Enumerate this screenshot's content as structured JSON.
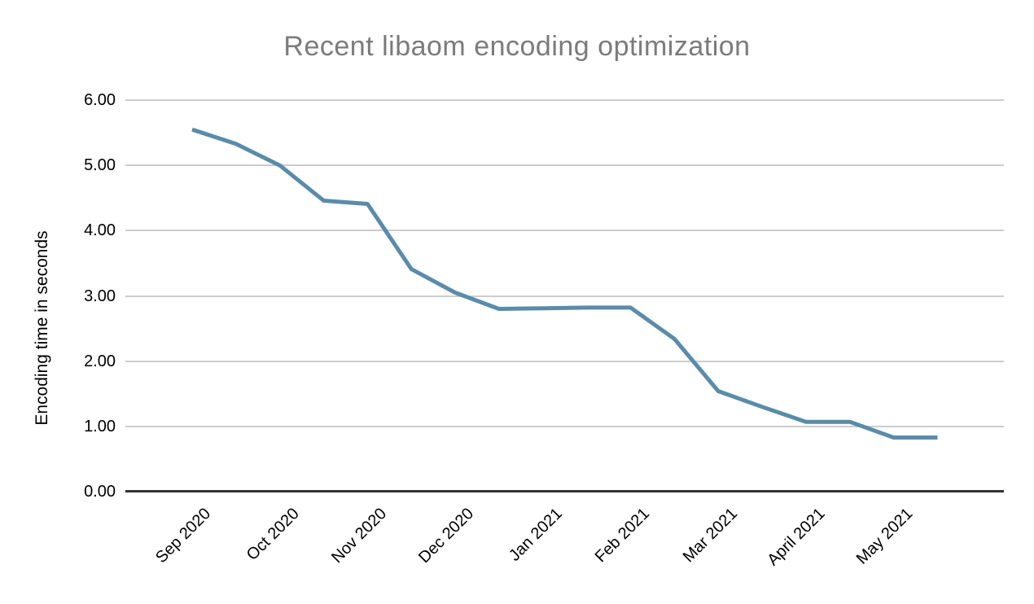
{
  "chart": {
    "title": "Recent libaom encoding optimization",
    "y_axis_title": "Encoding time in seconds"
  },
  "colors": {
    "background": "#ffffff",
    "title_text": "#7b7b7b",
    "axis_text": "#000000",
    "gridline": "#cccccc",
    "axis_line": "#333333",
    "series_line": "#5a8ca9"
  },
  "chart_data": {
    "type": "line",
    "title": "Recent libaom encoding optimization",
    "xlabel": "",
    "ylabel": "Encoding time in seconds",
    "ylim": [
      0,
      6
    ],
    "grid": true,
    "legend": "none",
    "y_tick_labels": [
      "0.00",
      "1.00",
      "2.00",
      "3.00",
      "4.00",
      "5.00",
      "6.00"
    ],
    "x_tick_labels": [
      "Sep 2020",
      "Oct 2020",
      "Nov 2020",
      "Dec 2020",
      "Jan 2021",
      "Feb 2021",
      "Mar 2021",
      "April 2021",
      "May 2021"
    ],
    "line_color": "#5a8ca9",
    "series": [
      {
        "name": "Encoding time in seconds",
        "points": [
          {
            "x_months_from_sep_2020": 0.0,
            "value": 5.55
          },
          {
            "x_months_from_sep_2020": 0.5,
            "value": 5.33
          },
          {
            "x_months_from_sep_2020": 1.0,
            "value": 5.0
          },
          {
            "x_months_from_sep_2020": 1.5,
            "value": 4.46
          },
          {
            "x_months_from_sep_2020": 2.0,
            "value": 4.41
          },
          {
            "x_months_from_sep_2020": 2.5,
            "value": 3.41
          },
          {
            "x_months_from_sep_2020": 3.0,
            "value": 3.05
          },
          {
            "x_months_from_sep_2020": 3.5,
            "value": 2.8
          },
          {
            "x_months_from_sep_2020": 4.0,
            "value": 2.81
          },
          {
            "x_months_from_sep_2020": 4.5,
            "value": 2.82
          },
          {
            "x_months_from_sep_2020": 5.0,
            "value": 2.82
          },
          {
            "x_months_from_sep_2020": 5.5,
            "value": 2.34
          },
          {
            "x_months_from_sep_2020": 6.0,
            "value": 1.54
          },
          {
            "x_months_from_sep_2020": 6.5,
            "value": 1.3
          },
          {
            "x_months_from_sep_2020": 7.0,
            "value": 1.07
          },
          {
            "x_months_from_sep_2020": 7.5,
            "value": 1.07
          },
          {
            "x_months_from_sep_2020": 8.0,
            "value": 0.83
          },
          {
            "x_months_from_sep_2020": 8.5,
            "value": 0.83
          }
        ]
      }
    ]
  }
}
